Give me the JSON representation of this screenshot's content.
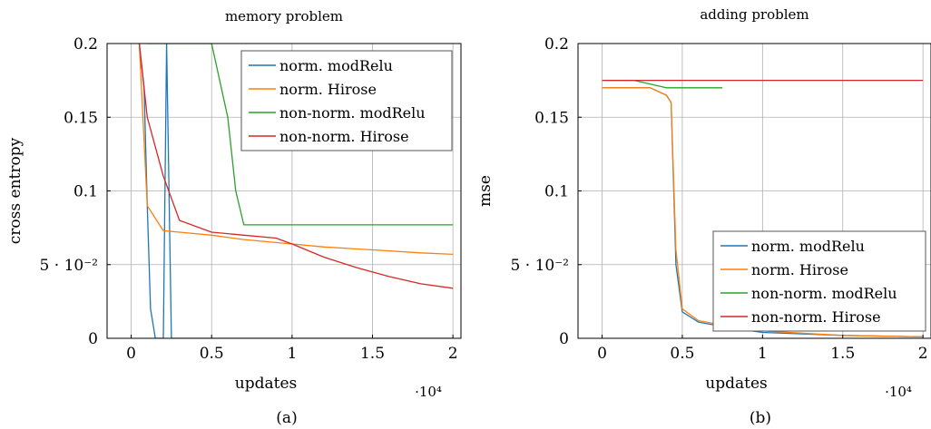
{
  "chart_data": [
    {
      "type": "line",
      "panel_label": "(a)",
      "title": "memory problem",
      "xlabel": "updates",
      "ylabel": "cross entropy",
      "x_multiplier": "·10⁴",
      "xlim": [
        -0.15,
        2.05
      ],
      "ylim": [
        0,
        0.2
      ],
      "x_ticks": [
        0,
        0.5,
        1,
        1.5,
        2
      ],
      "x_tick_labels": [
        "0",
        "0.5",
        "1",
        "1.5",
        "2"
      ],
      "y_ticks": [
        0,
        0.05,
        0.1,
        0.15,
        0.2
      ],
      "y_tick_labels": [
        "0",
        "5 · 10⁻²",
        "0.1",
        "0.15",
        "0.2"
      ],
      "grid": true,
      "legend_position": "top-right",
      "series": [
        {
          "name": "norm. modRelu",
          "color": "#1f77b4",
          "x": [
            0.05,
            0.08,
            0.1,
            0.12,
            0.15,
            0.2,
            0.22,
            0.25,
            0.3,
            0.5,
            1.0,
            2.0
          ],
          "y": [
            0.2,
            0.17,
            0.09,
            0.02,
            0.0,
            0.0,
            0.2,
            0.0,
            0.0,
            0.0,
            0.0,
            0.0
          ]
        },
        {
          "name": "norm. Hirose",
          "color": "#ff7f0e",
          "x": [
            0.05,
            0.1,
            0.2,
            0.3,
            0.5,
            0.7,
            0.9,
            1.0,
            1.2,
            1.5,
            1.8,
            2.0
          ],
          "y": [
            0.2,
            0.09,
            0.073,
            0.072,
            0.07,
            0.067,
            0.065,
            0.064,
            0.062,
            0.06,
            0.058,
            0.057
          ]
        },
        {
          "name": "non-norm. modRelu",
          "color": "#2ca02c",
          "x": [
            0.1,
            0.3,
            0.5,
            0.6,
            0.65,
            0.7,
            0.8,
            1.0,
            1.5,
            2.0
          ],
          "y": [
            0.2,
            0.2,
            0.2,
            0.15,
            0.1,
            0.077,
            0.077,
            0.077,
            0.077,
            0.077
          ]
        },
        {
          "name": "non-norm. Hirose",
          "color": "#d62728",
          "x": [
            0.05,
            0.1,
            0.2,
            0.3,
            0.5,
            0.7,
            0.9,
            1.0,
            1.2,
            1.4,
            1.6,
            1.8,
            2.0
          ],
          "y": [
            0.2,
            0.15,
            0.11,
            0.08,
            0.072,
            0.07,
            0.068,
            0.064,
            0.055,
            0.048,
            0.042,
            0.037,
            0.034
          ]
        }
      ]
    },
    {
      "type": "line",
      "panel_label": "(b)",
      "title": "adding problem",
      "xlabel": "updates",
      "ylabel": "mse",
      "x_multiplier": "·10⁴",
      "xlim": [
        -0.15,
        2.05
      ],
      "ylim": [
        0,
        0.2
      ],
      "x_ticks": [
        0,
        0.5,
        1,
        1.5,
        2
      ],
      "x_tick_labels": [
        "0",
        "0.5",
        "1",
        "1.5",
        "2"
      ],
      "y_ticks": [
        0,
        0.05,
        0.1,
        0.15,
        0.2
      ],
      "y_tick_labels": [
        "0",
        "5 · 10⁻²",
        "0.1",
        "0.15",
        "0.2"
      ],
      "grid": true,
      "legend_position": "bottom-right",
      "series": [
        {
          "name": "norm. modRelu",
          "color": "#1f77b4",
          "x": [
            0.0,
            0.1,
            0.2,
            0.3,
            0.4,
            0.43,
            0.46,
            0.5,
            0.6,
            0.8,
            1.0,
            1.5,
            2.0
          ],
          "y": [
            0.17,
            0.17,
            0.17,
            0.17,
            0.165,
            0.16,
            0.05,
            0.018,
            0.011,
            0.007,
            0.004,
            0.002,
            0.001
          ]
        },
        {
          "name": "norm. Hirose",
          "color": "#ff7f0e",
          "x": [
            0.0,
            0.1,
            0.2,
            0.3,
            0.4,
            0.43,
            0.46,
            0.5,
            0.6,
            0.8,
            1.0,
            1.5,
            2.0
          ],
          "y": [
            0.17,
            0.17,
            0.17,
            0.17,
            0.165,
            0.16,
            0.06,
            0.02,
            0.012,
            0.008,
            0.005,
            0.002,
            0.001
          ]
        },
        {
          "name": "non-norm. modRelu",
          "color": "#2ca02c",
          "x": [
            0.0,
            0.2,
            0.4,
            0.6,
            0.75
          ],
          "y": [
            0.175,
            0.175,
            0.17,
            0.17,
            0.17
          ]
        },
        {
          "name": "non-norm. Hirose",
          "color": "#d62728",
          "x": [
            0.0,
            0.5,
            1.0,
            1.5,
            2.0
          ],
          "y": [
            0.175,
            0.175,
            0.175,
            0.175,
            0.175
          ]
        }
      ]
    }
  ]
}
